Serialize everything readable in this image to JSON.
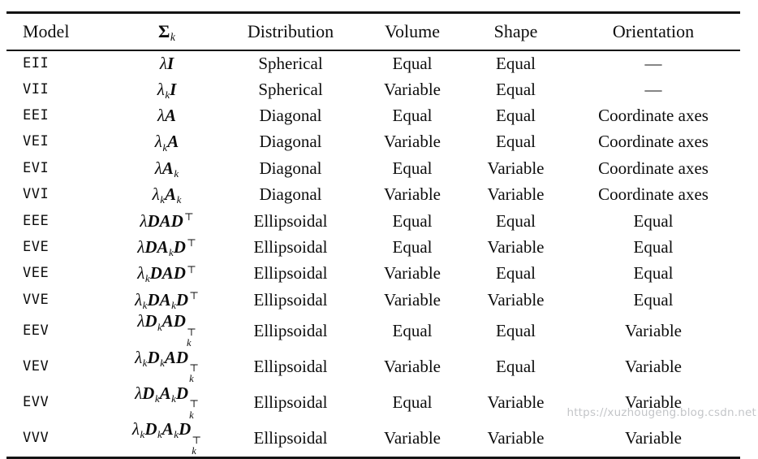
{
  "colors": {
    "background": "#ffffff",
    "text": "#0d0d0d",
    "rule": "#131313",
    "watermark": "#b9bbbe"
  },
  "watermark": "https://xuzhougeng.blog.csdn.net",
  "table": {
    "header": {
      "model": "Model",
      "sigma_main": "Σ",
      "sigma_sub": "k",
      "distribution": "Distribution",
      "volume": "Volume",
      "shape": "Shape",
      "orientation": "Orientation"
    },
    "rows": [
      {
        "model": "EII",
        "sigma": [
          {
            "v": "λ",
            "s": "it"
          },
          {
            "v": "I",
            "s": "b"
          }
        ],
        "distribution": "Spherical",
        "volume": "Equal",
        "shape": "Equal",
        "orientation": "—"
      },
      {
        "model": "VII",
        "sigma": [
          {
            "v": "λ",
            "s": "it",
            "sub": "k"
          },
          {
            "v": "I",
            "s": "b"
          }
        ],
        "distribution": "Spherical",
        "volume": "Variable",
        "shape": "Equal",
        "orientation": "—"
      },
      {
        "model": "EEI",
        "sigma": [
          {
            "v": "λ",
            "s": "it"
          },
          {
            "v": "A",
            "s": "b"
          }
        ],
        "distribution": "Diagonal",
        "volume": "Equal",
        "shape": "Equal",
        "orientation": "Coordinate axes"
      },
      {
        "model": "VEI",
        "sigma": [
          {
            "v": "λ",
            "s": "it",
            "sub": "k"
          },
          {
            "v": "A",
            "s": "b"
          }
        ],
        "distribution": "Diagonal",
        "volume": "Variable",
        "shape": "Equal",
        "orientation": "Coordinate axes"
      },
      {
        "model": "EVI",
        "sigma": [
          {
            "v": "λ",
            "s": "it"
          },
          {
            "v": "A",
            "s": "b",
            "sub": "k"
          }
        ],
        "distribution": "Diagonal",
        "volume": "Equal",
        "shape": "Variable",
        "orientation": "Coordinate axes"
      },
      {
        "model": "VVI",
        "sigma": [
          {
            "v": "λ",
            "s": "it",
            "sub": "k"
          },
          {
            "v": "A",
            "s": "b",
            "sub": "k"
          }
        ],
        "distribution": "Diagonal",
        "volume": "Variable",
        "shape": "Variable",
        "orientation": "Coordinate axes"
      },
      {
        "model": "EEE",
        "sigma": [
          {
            "v": "λ",
            "s": "it"
          },
          {
            "v": "D",
            "s": "b"
          },
          {
            "v": "A",
            "s": "b"
          },
          {
            "v": "D",
            "s": "b",
            "sup": "⊤"
          }
        ],
        "distribution": "Ellipsoidal",
        "volume": "Equal",
        "shape": "Equal",
        "orientation": "Equal"
      },
      {
        "model": "EVE",
        "sigma": [
          {
            "v": "λ",
            "s": "it"
          },
          {
            "v": "D",
            "s": "b"
          },
          {
            "v": "A",
            "s": "b",
            "sub": "k"
          },
          {
            "v": "D",
            "s": "b",
            "sup": "⊤"
          }
        ],
        "distribution": "Ellipsoidal",
        "volume": "Equal",
        "shape": "Variable",
        "orientation": "Equal"
      },
      {
        "model": "VEE",
        "sigma": [
          {
            "v": "λ",
            "s": "it",
            "sub": "k"
          },
          {
            "v": "D",
            "s": "b"
          },
          {
            "v": "A",
            "s": "b"
          },
          {
            "v": "D",
            "s": "b",
            "sup": "⊤"
          }
        ],
        "distribution": "Ellipsoidal",
        "volume": "Variable",
        "shape": "Equal",
        "orientation": "Equal"
      },
      {
        "model": "VVE",
        "sigma": [
          {
            "v": "λ",
            "s": "it",
            "sub": "k"
          },
          {
            "v": "D",
            "s": "b"
          },
          {
            "v": "A",
            "s": "b",
            "sub": "k"
          },
          {
            "v": "D",
            "s": "b",
            "sup": "⊤"
          }
        ],
        "distribution": "Ellipsoidal",
        "volume": "Variable",
        "shape": "Variable",
        "orientation": "Equal"
      },
      {
        "model": "EEV",
        "sigma": [
          {
            "v": "λ",
            "s": "it"
          },
          {
            "v": "D",
            "s": "b",
            "sub": "k"
          },
          {
            "v": "A",
            "s": "b"
          },
          {
            "v": "D",
            "s": "b",
            "sub": "k",
            "sup": "⊤"
          }
        ],
        "distribution": "Ellipsoidal",
        "volume": "Equal",
        "shape": "Equal",
        "orientation": "Variable"
      },
      {
        "model": "VEV",
        "sigma": [
          {
            "v": "λ",
            "s": "it",
            "sub": "k"
          },
          {
            "v": "D",
            "s": "b",
            "sub": "k"
          },
          {
            "v": "A",
            "s": "b"
          },
          {
            "v": "D",
            "s": "b",
            "sub": "k",
            "sup": "⊤"
          }
        ],
        "distribution": "Ellipsoidal",
        "volume": "Variable",
        "shape": "Equal",
        "orientation": "Variable"
      },
      {
        "model": "EVV",
        "sigma": [
          {
            "v": "λ",
            "s": "it"
          },
          {
            "v": "D",
            "s": "b",
            "sub": "k"
          },
          {
            "v": "A",
            "s": "b",
            "sub": "k"
          },
          {
            "v": "D",
            "s": "b",
            "sub": "k",
            "sup": "⊤"
          }
        ],
        "distribution": "Ellipsoidal",
        "volume": "Equal",
        "shape": "Variable",
        "orientation": "Variable"
      },
      {
        "model": "VVV",
        "sigma": [
          {
            "v": "λ",
            "s": "it",
            "sub": "k"
          },
          {
            "v": "D",
            "s": "b",
            "sub": "k"
          },
          {
            "v": "A",
            "s": "b",
            "sub": "k"
          },
          {
            "v": "D",
            "s": "b",
            "sub": "k",
            "sup": "⊤"
          }
        ],
        "distribution": "Ellipsoidal",
        "volume": "Variable",
        "shape": "Variable",
        "orientation": "Variable"
      }
    ]
  }
}
